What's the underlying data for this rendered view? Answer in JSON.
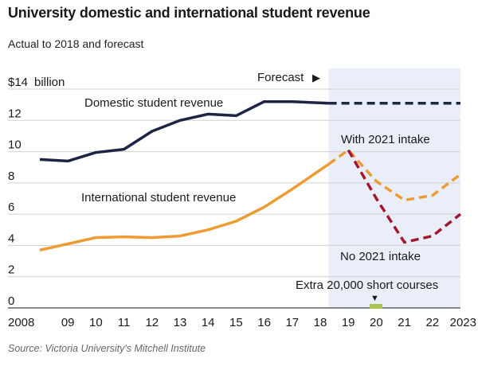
{
  "header": {
    "title": "University domestic and international student revenue",
    "subtitle": "Actual to 2018 and forecast",
    "source": "Source: Victoria University's Mitchell Institute"
  },
  "colors": {
    "domestic": "#1d2545",
    "international": "#ed9b33",
    "no_intake": "#a3182f",
    "forecast_band": "#e9eef8",
    "grid": "#d0d0d0",
    "short_courses_marker": "#a8c64f"
  },
  "chart_data": {
    "type": "line",
    "title": "University domestic and international student revenue",
    "subtitle": "Actual to 2018 and forecast",
    "ylabel": "$14 billion",
    "ylim": [
      0,
      14
    ],
    "yticks": [
      0,
      2,
      4,
      6,
      8,
      10,
      12,
      14
    ],
    "ytick_labels": [
      "0",
      "2",
      "4",
      "6",
      "8",
      "10",
      "12",
      "$14"
    ],
    "ytick_unit": "billion",
    "x_tick_labels": [
      "2008",
      "09",
      "10",
      "11",
      "12",
      "13",
      "14",
      "15",
      "16",
      "17",
      "18",
      "19",
      "20",
      "21",
      "22",
      "2023"
    ],
    "x_years": [
      2008,
      2009,
      2010,
      2011,
      2012,
      2013,
      2014,
      2015,
      2016,
      2017,
      2018,
      2019,
      2020,
      2021,
      2022,
      2023
    ],
    "forecast_start": 2018.3,
    "grid": true,
    "series": [
      {
        "name": "Domestic student revenue",
        "style": "solid",
        "x": [
          2008,
          2009,
          2010,
          2011,
          2012,
          2013,
          2014,
          2015,
          2016,
          2017,
          2018.3
        ],
        "values": [
          9.5,
          9.4,
          9.95,
          10.15,
          11.3,
          12.0,
          12.4,
          12.3,
          13.2,
          13.2,
          13.1
        ]
      },
      {
        "name": "Domestic student revenue",
        "style": "dashed",
        "x": [
          2018.3,
          2019,
          2020,
          2021,
          2022,
          2023
        ],
        "values": [
          13.1,
          13.1,
          13.1,
          13.1,
          13.1,
          13.1
        ]
      },
      {
        "name": "International student revenue",
        "style": "solid",
        "x": [
          2008,
          2009,
          2010,
          2011,
          2012,
          2013,
          2014,
          2015,
          2016,
          2017,
          2018.3
        ],
        "values": [
          3.7,
          4.1,
          4.5,
          4.55,
          4.5,
          4.6,
          5.0,
          5.55,
          6.45,
          7.6,
          9.2
        ]
      },
      {
        "name": "With 2021 intake",
        "style": "dashed",
        "x": [
          2018.3,
          2019,
          2020,
          2021,
          2022,
          2023
        ],
        "values": [
          9.2,
          10.1,
          8.1,
          6.9,
          7.2,
          8.55
        ]
      },
      {
        "name": "No 2021 intake",
        "style": "dashed",
        "x": [
          2019,
          2020,
          2021,
          2022,
          2023
        ],
        "values": [
          10.1,
          7.0,
          4.2,
          4.6,
          6.0
        ]
      }
    ],
    "annotations": {
      "forecast": "Forecast",
      "forecast_arrow": "▶",
      "domestic_label": "Domestic student revenue",
      "international_label": "International student revenue",
      "with_intake_label": "With 2021 intake",
      "no_intake_label": "No 2021 intake",
      "short_courses_label": "Extra 20,000 short courses",
      "short_courses_arrow": "▼",
      "short_courses_year": 2020
    }
  }
}
